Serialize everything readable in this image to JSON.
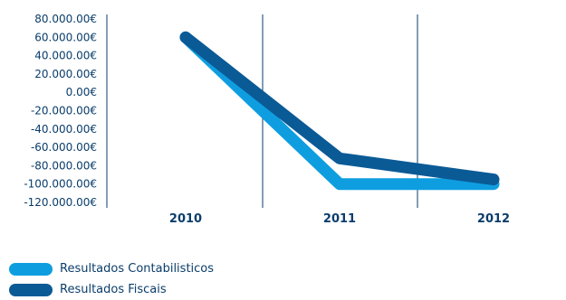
{
  "chart_data": {
    "type": "line",
    "categories": [
      "2010",
      "2011",
      "2012"
    ],
    "yticks": [
      "80.000.00€",
      "60.000.00€",
      "40.000.00€",
      "20.000.00€",
      "0.00€",
      "-20.000.00€",
      "-40.000.00€",
      "-60.000.00€",
      "-80.000.00€",
      "-100.000.00€",
      "-120.000.00€"
    ],
    "ylim": [
      -120000,
      80000
    ],
    "grid": "vertical-category-separators",
    "legend_position": "bottom-left",
    "series": [
      {
        "name": "Resultados Contabilisticos",
        "color": "#0e9ee0",
        "values": [
          60000,
          -100000,
          -100000
        ]
      },
      {
        "name": "Resultados Fiscais",
        "color": "#0a5a96",
        "values": [
          60000,
          -72000,
          -95000
        ]
      }
    ]
  }
}
